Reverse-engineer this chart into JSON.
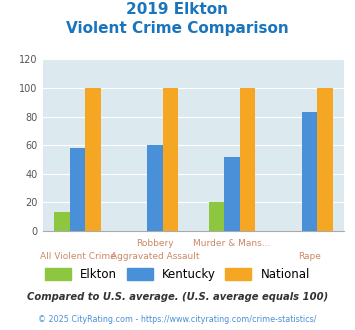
{
  "title_line1": "2019 Elkton",
  "title_line2": "Violent Crime Comparison",
  "category_labels_top": [
    "",
    "Robbery",
    "Murder & Mans...",
    ""
  ],
  "category_labels_bottom": [
    "All Violent Crime",
    "Aggravated Assault",
    "",
    "Rape"
  ],
  "elkton": [
    13,
    0,
    20,
    0
  ],
  "kentucky": [
    58,
    60,
    52,
    83
  ],
  "national": [
    100,
    100,
    100,
    100
  ],
  "elkton_color": "#8dc63f",
  "kentucky_color": "#4a90d9",
  "national_color": "#f5a623",
  "ylim": [
    0,
    120
  ],
  "yticks": [
    0,
    20,
    40,
    60,
    80,
    100,
    120
  ],
  "bg_color": "#dce9ef",
  "legend_labels": [
    "Elkton",
    "Kentucky",
    "National"
  ],
  "footnote1": "Compared to U.S. average. (U.S. average equals 100)",
  "footnote2": "© 2025 CityRating.com - https://www.cityrating.com/crime-statistics/",
  "title_color": "#1a75bc",
  "xlabel_color": "#cc8866",
  "footnote1_color": "#333333",
  "footnote2_color": "#4a90d9"
}
